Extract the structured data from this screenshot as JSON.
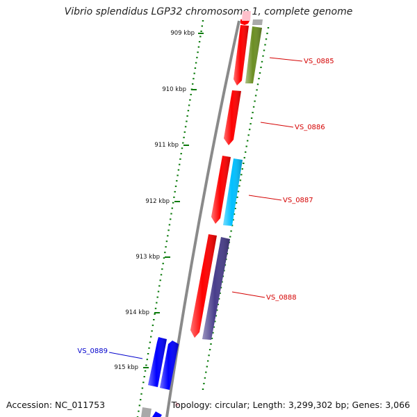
{
  "title": "Vibrio splendidus LGP32 chromosome 1, complete genome",
  "footer": {
    "accession": "Accession: NC_011753",
    "summary": "Topology: circular; Length: 3,299,302 bp; Genes: 3,066"
  },
  "colors": {
    "backbone": "#8a8a8a",
    "tick": "#0a7a0a",
    "gene_label_forward": "#d40000",
    "gene_label_reverse": "#0000cc"
  },
  "ticks": [
    {
      "label": "909 kbp"
    },
    {
      "label": "910 kbp"
    },
    {
      "label": "911 kbp"
    },
    {
      "label": "912 kbp"
    },
    {
      "label": "913 kbp"
    },
    {
      "label": "914 kbp"
    },
    {
      "label": "915 kbp"
    }
  ],
  "gene_labels": [
    {
      "text": "VS_0885",
      "strand": "forward"
    },
    {
      "text": "VS_0886",
      "strand": "forward"
    },
    {
      "text": "VS_0887",
      "strand": "forward"
    },
    {
      "text": "VS_0888",
      "strand": "forward"
    },
    {
      "text": "VS_0889",
      "strand": "reverse"
    }
  ],
  "features": [
    {
      "name": "gene",
      "color": "#ff0000"
    },
    {
      "name": "gene",
      "color": "#ff0000"
    },
    {
      "name": "gene",
      "color": "#ff0000"
    },
    {
      "name": "gene",
      "color": "#ff0000"
    },
    {
      "name": "gene",
      "color": "#ff0000"
    },
    {
      "name": "gene",
      "color": "#ff0000"
    },
    {
      "name": "cds",
      "color": "#6b8e23"
    },
    {
      "name": "cds",
      "color": "#00bfff"
    },
    {
      "name": "cds",
      "color": "#483d8b"
    },
    {
      "name": "gene",
      "color": "#0000ff"
    },
    {
      "name": "gene",
      "color": "#0000ff"
    },
    {
      "name": "gene",
      "color": "#ffc0cb"
    },
    {
      "name": "gene",
      "color": "#a9a9a9"
    },
    {
      "name": "gene",
      "color": "#a9a9a9"
    }
  ]
}
